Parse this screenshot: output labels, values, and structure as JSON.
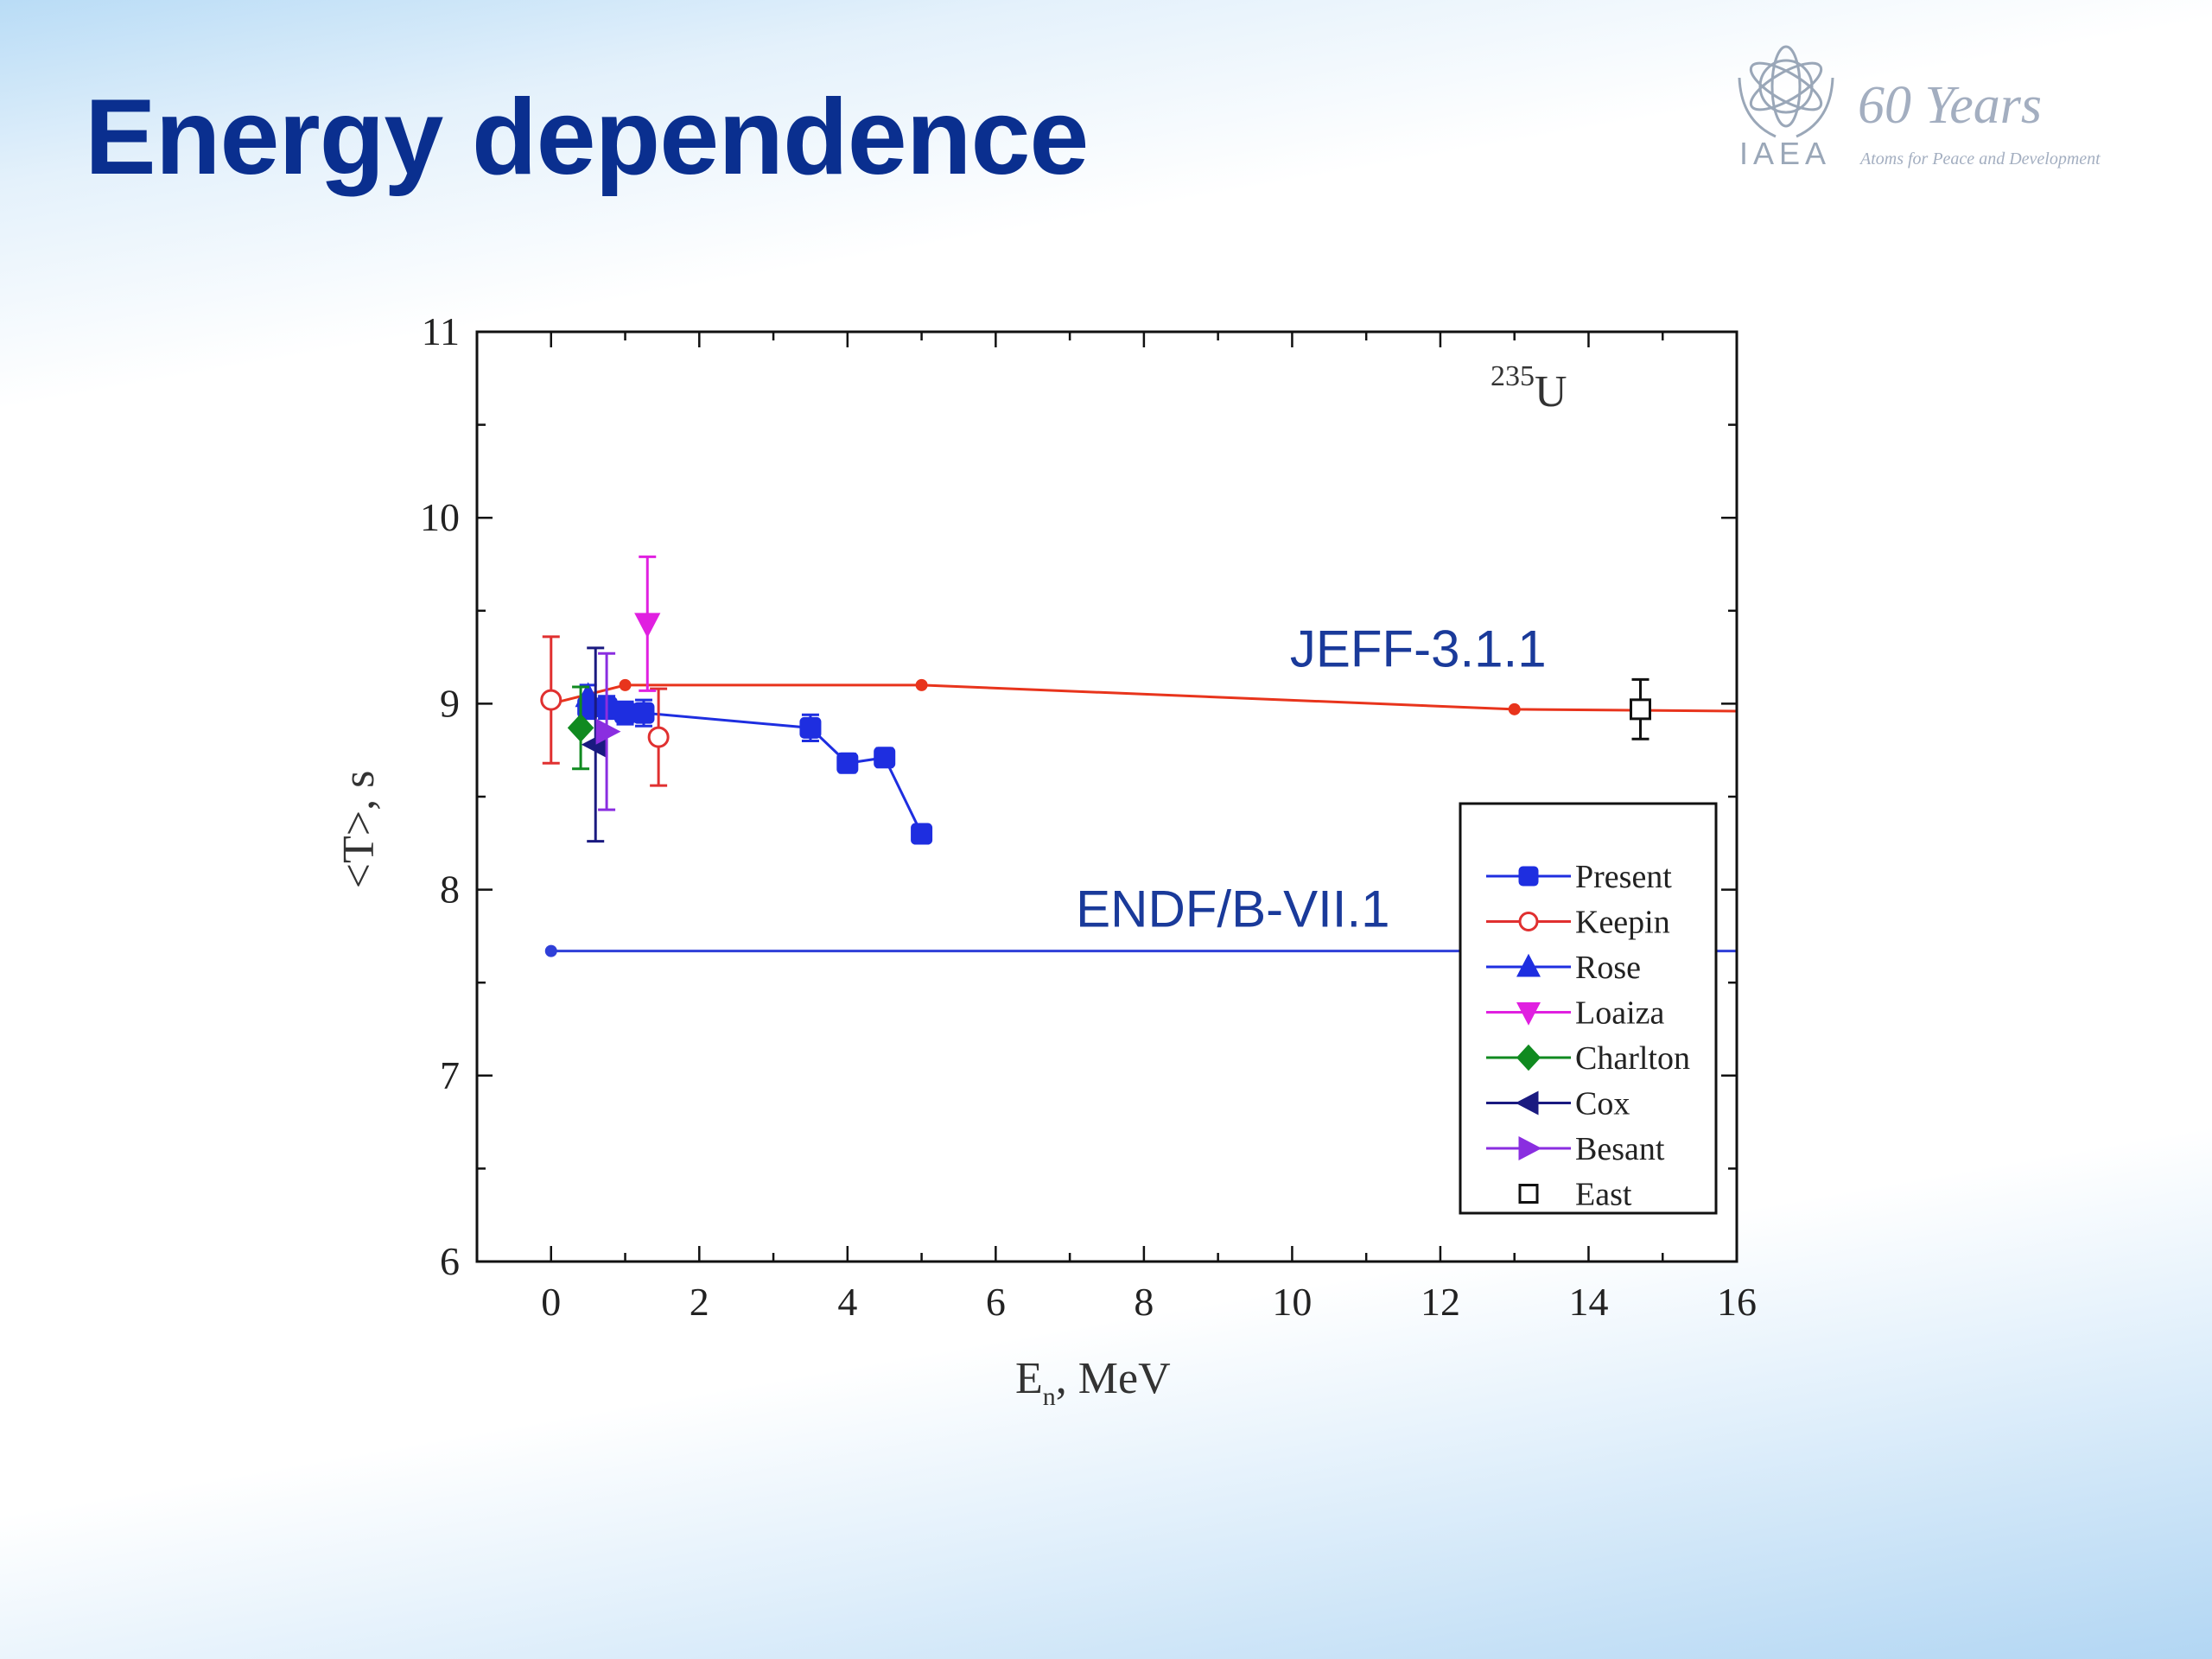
{
  "slide": {
    "title": "Energy dependence",
    "logo": {
      "org": "IAEA",
      "years": "60 Years",
      "tagline": "Atoms for Peace and Development"
    }
  },
  "chart_data": {
    "type": "scatter",
    "title": "",
    "xlabel": "E",
    "xlabel_sub": "n",
    "xlabel_unit": ", MeV",
    "ylabel": "<T>, s",
    "xlim": [
      -1,
      16
    ],
    "ylim": [
      6,
      11
    ],
    "xticks": [
      0,
      2,
      4,
      6,
      8,
      10,
      12,
      14,
      16
    ],
    "yticks": [
      6,
      7,
      8,
      9,
      10,
      11
    ],
    "grid": false,
    "legend_position": "bottom-right",
    "nuclide_mass": "235",
    "nuclide_symbol": "U",
    "annotations": [
      {
        "text": "JEFF-3.1.1",
        "x": 11.7,
        "y": 9.2
      },
      {
        "text": "ENDF/B-VII.1",
        "x": 9.2,
        "y": 7.8
      }
    ],
    "reference_lines": [
      {
        "name": "JEFF-3.1.1",
        "color": "#e8341c",
        "points": [
          [
            0,
            9.0
          ],
          [
            1,
            9.1
          ],
          [
            5,
            9.1
          ],
          [
            13,
            8.97
          ],
          [
            16,
            8.96
          ]
        ],
        "marked": [
          [
            0,
            9.0
          ],
          [
            1,
            9.1
          ],
          [
            5,
            9.1
          ],
          [
            13,
            8.97
          ]
        ]
      },
      {
        "name": "ENDF/B-VII.1",
        "color": "#2f3fd8",
        "points": [
          [
            0,
            7.67
          ],
          [
            16,
            7.67
          ]
        ],
        "marked": [
          [
            0,
            7.67
          ]
        ]
      }
    ],
    "series": [
      {
        "name": "Present",
        "color": "#1e2ee0",
        "marker": "square",
        "filled": true,
        "line": true,
        "points": [
          [
            0.5,
            8.98,
            0.06
          ],
          [
            0.75,
            8.98,
            0.06
          ],
          [
            1.0,
            8.95,
            0.06
          ],
          [
            1.25,
            8.95,
            0.07
          ],
          [
            3.5,
            8.87,
            0.07
          ],
          [
            4.0,
            8.68,
            0.05
          ],
          [
            4.5,
            8.71,
            0.05
          ],
          [
            5.0,
            8.3,
            0.04
          ]
        ]
      },
      {
        "name": "Keepin",
        "color": "#e03030",
        "marker": "circle",
        "filled": false,
        "line": false,
        "points": [
          [
            0.0,
            9.02,
            0.34
          ],
          [
            1.45,
            8.82,
            0.26
          ]
        ]
      },
      {
        "name": "Rose",
        "color": "#1e2ee0",
        "marker": "triangle-up",
        "filled": true,
        "line": false,
        "points": [
          [
            0.5,
            9.04,
            0.06
          ]
        ]
      },
      {
        "name": "Loaiza",
        "color": "#e020e0",
        "marker": "triangle-down",
        "filled": true,
        "line": false,
        "points": [
          [
            1.3,
            9.43,
            0.36
          ]
        ]
      },
      {
        "name": "Charlton",
        "color": "#108a20",
        "marker": "diamond",
        "filled": true,
        "line": false,
        "points": [
          [
            0.4,
            8.87,
            0.22
          ]
        ]
      },
      {
        "name": "Cox",
        "color": "#1a1a80",
        "marker": "triangle-left",
        "filled": true,
        "line": false,
        "points": [
          [
            0.6,
            8.78,
            0.52
          ]
        ]
      },
      {
        "name": "Besant",
        "color": "#8a2ee0",
        "marker": "triangle-right",
        "filled": true,
        "line": false,
        "points": [
          [
            0.75,
            8.85,
            0.42
          ]
        ]
      },
      {
        "name": "East",
        "color": "#111111",
        "marker": "square",
        "filled": false,
        "line": false,
        "points": [
          [
            14.7,
            8.97,
            0.16
          ]
        ]
      }
    ]
  }
}
